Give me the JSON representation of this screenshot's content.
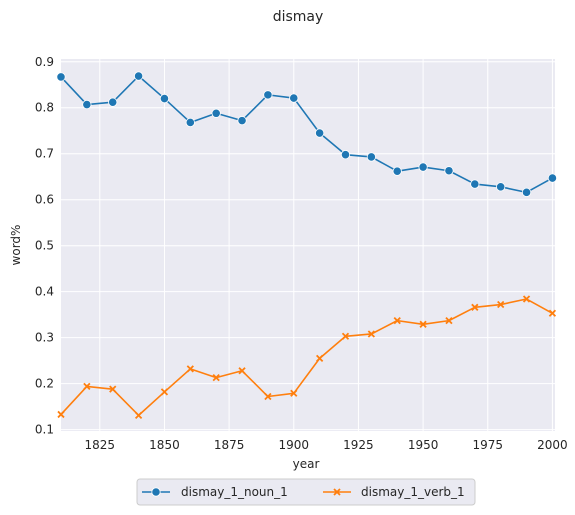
{
  "chart_data": {
    "type": "line",
    "title": "dismay",
    "xlabel": "year",
    "ylabel": "word%",
    "xlim": [
      1810,
      2001
    ],
    "ylim": [
      0.097,
      0.906
    ],
    "xticks": [
      1825,
      1850,
      1875,
      1900,
      1925,
      1950,
      1975,
      2000
    ],
    "xtick_labels": [
      "1825",
      "1850",
      "1875",
      "1900",
      "1925",
      "1950",
      "1975",
      "2000"
    ],
    "yticks": [
      0.1,
      0.2,
      0.3,
      0.4,
      0.5,
      0.6,
      0.7,
      0.8,
      0.9
    ],
    "ytick_labels": [
      "0.1",
      "0.2",
      "0.3",
      "0.4",
      "0.5",
      "0.6",
      "0.7",
      "0.8",
      "0.9"
    ],
    "grid": true,
    "legend_position": "bottom-center",
    "x": [
      1810,
      1820,
      1830,
      1840,
      1850,
      1860,
      1870,
      1880,
      1890,
      1900,
      1910,
      1920,
      1930,
      1940,
      1950,
      1960,
      1970,
      1980,
      1990,
      2000
    ],
    "series": [
      {
        "name": "dismay_1_noun_1",
        "color": "#1f77b4",
        "marker": "circle",
        "values": [
          0.867,
          0.807,
          0.812,
          0.869,
          0.82,
          0.768,
          0.788,
          0.772,
          0.828,
          0.821,
          0.745,
          0.698,
          0.693,
          0.662,
          0.671,
          0.663,
          0.634,
          0.628,
          0.616,
          0.647
        ]
      },
      {
        "name": "dismay_1_verb_1",
        "color": "#ff7f0e",
        "marker": "x",
        "values": [
          0.133,
          0.194,
          0.188,
          0.131,
          0.182,
          0.232,
          0.213,
          0.228,
          0.172,
          0.179,
          0.255,
          0.303,
          0.308,
          0.337,
          0.329,
          0.337,
          0.366,
          0.372,
          0.384,
          0.353
        ]
      }
    ]
  }
}
